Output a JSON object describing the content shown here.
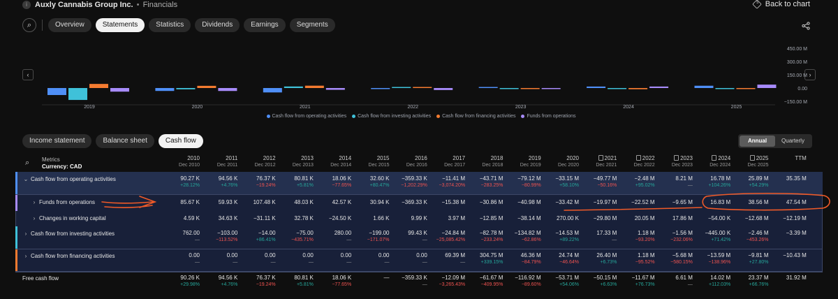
{
  "header": {
    "logo_glyph": "i",
    "company": "Auxly Cannabis Group Inc.",
    "separator": "•",
    "section": "Financials",
    "back_label": "Back to chart",
    "back_glyph": "5"
  },
  "tabs": [
    {
      "label": "Overview",
      "active": false
    },
    {
      "label": "Statements",
      "active": true
    },
    {
      "label": "Statistics",
      "active": false
    },
    {
      "label": "Dividends",
      "active": false
    },
    {
      "label": "Earnings",
      "active": false
    },
    {
      "label": "Segments",
      "active": false
    }
  ],
  "icons": {
    "search": "search-icon",
    "share": "share-icon",
    "nav_left": "chevron-left-icon",
    "nav_right": "chevron-right-icon"
  },
  "chart_data": {
    "type": "bar",
    "categories": [
      "2019",
      "2020",
      "2021",
      "2022",
      "2023",
      "2024",
      "2025"
    ],
    "y_ticks": [
      "450.00 M",
      "300.00 M",
      "150.00 M",
      "0.00",
      "−150.00 M"
    ],
    "ylim": [
      -150,
      450
    ],
    "y_unit": "M",
    "series": [
      {
        "name": "Cash flow from operating activities",
        "color": "#4f8ff7",
        "values": [
          -79.12,
          -33.15,
          -49.77,
          -2.48,
          8.21,
          16.78,
          25.89
        ]
      },
      {
        "name": "Cash flow from investing activities",
        "color": "#3fc1d9",
        "values": [
          -134.82,
          -14.53,
          17.33,
          1.18,
          -1.56,
          -0.445,
          -2.46
        ]
      },
      {
        "name": "Cash flow from financing activities",
        "color": "#f47b30",
        "values": [
          46.36,
          24.74,
          26.4,
          1.18,
          -5.68,
          -13.59,
          -9.81
        ]
      },
      {
        "name": "Funds from operations",
        "color": "#a78bfa",
        "values": [
          -40.98,
          -33.42,
          -19.97,
          -22.52,
          -9.65,
          16.83,
          38.56
        ]
      }
    ],
    "grid": false,
    "legend_position": "bottom"
  },
  "legend_dot_char": "●",
  "subtabs": [
    {
      "label": "Income statement",
      "active": false
    },
    {
      "label": "Balance sheet",
      "active": false
    },
    {
      "label": "Cash flow",
      "active": true
    }
  ],
  "period": {
    "annual": "Annual",
    "quarterly": "Quarterly",
    "active": "Annual"
  },
  "table": {
    "metrics_label": "Metrics",
    "currency_label": "Currency: CAD",
    "columns": [
      {
        "year": "2010",
        "date": "Dec 2010",
        "doc": false
      },
      {
        "year": "2011",
        "date": "Dec 2011",
        "doc": false
      },
      {
        "year": "2012",
        "date": "Dec 2012",
        "doc": false
      },
      {
        "year": "2013",
        "date": "Dec 2013",
        "doc": false
      },
      {
        "year": "2014",
        "date": "Dec 2014",
        "doc": false
      },
      {
        "year": "2015",
        "date": "Dec 2015",
        "doc": false
      },
      {
        "year": "2016",
        "date": "Dec 2016",
        "doc": false
      },
      {
        "year": "2017",
        "date": "Dec 2017",
        "doc": false
      },
      {
        "year": "2018",
        "date": "Dec 2018",
        "doc": false
      },
      {
        "year": "2019",
        "date": "Dec 2019",
        "doc": false
      },
      {
        "year": "2020",
        "date": "Dec 2020",
        "doc": false
      },
      {
        "year": "2021",
        "date": "Dec 2021",
        "doc": true
      },
      {
        "year": "2022",
        "date": "Dec 2022",
        "doc": true
      },
      {
        "year": "2023",
        "date": "Dec 2023",
        "doc": true
      },
      {
        "year": "2024",
        "date": "Dec 2024",
        "doc": true
      },
      {
        "year": "2025",
        "date": "Dec 2025",
        "doc": true
      },
      {
        "year": "TTM",
        "date": "",
        "doc": false
      }
    ],
    "rows": [
      {
        "label": "Cash flow from operating activities",
        "chevron": "⌄",
        "indent": 0,
        "accent": "#4f8ff7",
        "values": [
          "90.27 K",
          "94.56 K",
          "76.37 K",
          "80.81 K",
          "18.06 K",
          "32.60 K",
          "−359.33 K",
          "−11.41 M",
          "−43.71 M",
          "−79.12 M",
          "−33.15 M",
          "−49.77 M",
          "−2.48 M",
          "8.21 M",
          "16.78 M",
          "25.89 M",
          "35.35 M"
        ],
        "changes": [
          "+28.12%",
          "+4.76%",
          "−19.24%",
          "+5.81%",
          "−77.65%",
          "+80.47%",
          "−1,202.29%",
          "−3,074.20%",
          "−283.25%",
          "−80.99%",
          "+58.10%",
          "−50.16%",
          "+95.02%",
          "—",
          "+104.26%",
          "+54.29%",
          ""
        ]
      },
      {
        "label": "Funds from operations",
        "chevron": "›",
        "indent": 1,
        "accent": "#a78bfa",
        "values": [
          "85.67 K",
          "59.93 K",
          "107.48 K",
          "48.03 K",
          "42.57 K",
          "30.94 K",
          "−369.33 K",
          "−15.38 M",
          "−30.86 M",
          "−40.98 M",
          "−33.42 M",
          "−19.97 M",
          "−22.52 M",
          "−9.65 M",
          "16.83 M",
          "38.56 M",
          "47.54 M"
        ],
        "changes": []
      },
      {
        "label": "Changes in working capital",
        "chevron": "›",
        "indent": 1,
        "accent": "",
        "values": [
          "4.59 K",
          "34.63 K",
          "−31.11 K",
          "32.78 K",
          "−24.50 K",
          "1.66 K",
          "9.99 K",
          "3.97 M",
          "−12.85 M",
          "−38.14 M",
          "270.00 K",
          "−29.80 M",
          "20.05 M",
          "17.86 M",
          "−54.00 K",
          "−12.68 M",
          "−12.19 M"
        ],
        "changes": []
      },
      {
        "label": "Cash flow from investing activities",
        "chevron": "›",
        "indent": 0,
        "accent": "#3fc1d9",
        "values": [
          "762.00",
          "−103.00",
          "−14.00",
          "−75.00",
          "280.00",
          "−199.00",
          "99.43 K",
          "−24.84 M",
          "−82.78 M",
          "−134.82 M",
          "−14.53 M",
          "17.33 M",
          "1.18 M",
          "−1.56 M",
          "−445.00 K",
          "−2.46 M",
          "−3.39 M"
        ],
        "changes": [
          "—",
          "−113.52%",
          "+86.41%",
          "−435.71%",
          "—",
          "−171.07%",
          "—",
          "−25,085.42%",
          "−233.24%",
          "−62.86%",
          "+89.22%",
          "—",
          "−93.20%",
          "−232.06%",
          "+71.42%",
          "−453.26%",
          ""
        ]
      },
      {
        "label": "Cash flow from financing activities",
        "chevron": "›",
        "indent": 0,
        "accent": "#f47b30",
        "values": [
          "0.00",
          "0.00",
          "0.00",
          "0.00",
          "0.00",
          "0.00",
          "0.00",
          "69.39 M",
          "304.75 M",
          "46.36 M",
          "24.74 M",
          "26.40 M",
          "1.18 M",
          "−5.68 M",
          "−13.59 M",
          "−9.81 M",
          "−10.43 M"
        ],
        "changes": [
          "—",
          "—",
          "—",
          "—",
          "—",
          "—",
          "—",
          "—",
          "+339.15%",
          "−84.79%",
          "−46.64%",
          "+6.73%",
          "−95.52%",
          "−580.15%",
          "−138.96%",
          "+27.80%",
          ""
        ]
      },
      {
        "label": "Free cash flow",
        "chevron": "",
        "indent": 0,
        "accent": "",
        "values": [
          "90.26 K",
          "94.56 K",
          "76.37 K",
          "80.81 K",
          "18.06 K",
          "—",
          "−359.33 K",
          "−12.09 M",
          "−61.67 M",
          "−116.92 M",
          "−53.71 M",
          "−50.15 M",
          "−11.67 M",
          "6.61 M",
          "14.02 M",
          "23.37 M",
          "31.92 M"
        ],
        "changes": [
          "+29.98%",
          "+4.76%",
          "−19.24%",
          "+5.81%",
          "−77.65%",
          "",
          "—",
          "−3,265.43%",
          "−409.95%",
          "−89.60%",
          "+54.06%",
          "+6.63%",
          "+76.73%",
          "—",
          "+112.03%",
          "+66.76%",
          ""
        ]
      }
    ]
  },
  "annotation_color": "#f05a28"
}
